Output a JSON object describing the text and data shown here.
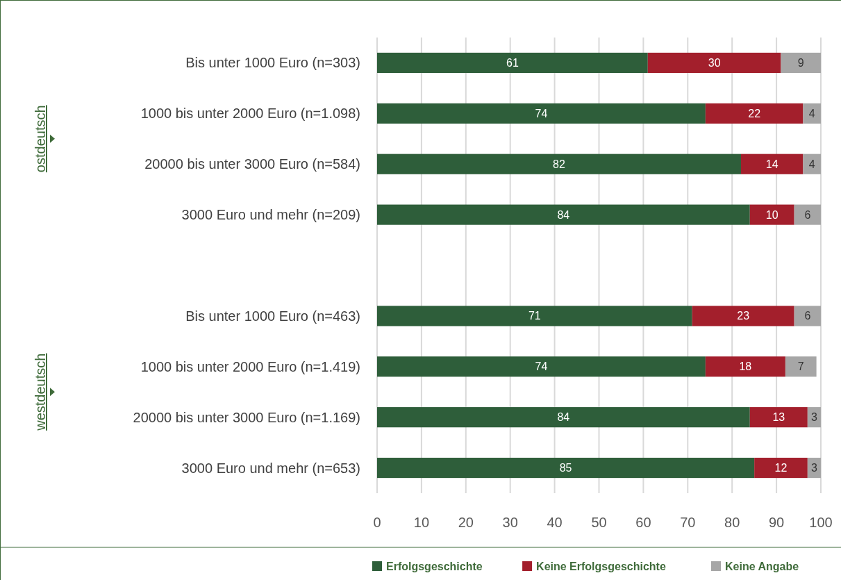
{
  "chart_data": {
    "type": "bar",
    "orientation": "horizontal",
    "stacked": true,
    "categories": [
      "Bis unter 1000 Euro (n=303)",
      "1000 bis unter 2000 Euro (n=1.098)",
      "20000 bis unter 3000 Euro (n=584)",
      "3000 Euro und mehr (n=209)",
      null,
      "Bis unter 1000 Euro (n=463)",
      "1000 bis unter 2000 Euro (n=1.419)",
      "20000 bis unter 3000 Euro (n=1.169)",
      "3000 Euro und mehr (n=653)"
    ],
    "series": [
      {
        "name": "Erfolgsgeschichte",
        "color": "#2e5e3a",
        "values": [
          61,
          74,
          82,
          84,
          null,
          71,
          74,
          84,
          85
        ]
      },
      {
        "name": "Keine Erfolgsgeschichte",
        "color": "#a31f2c",
        "values": [
          30,
          22,
          14,
          10,
          null,
          23,
          18,
          13,
          12
        ]
      },
      {
        "name": "Keine Angabe",
        "color": "#a6a6a6",
        "values": [
          9,
          4,
          4,
          6,
          null,
          6,
          7,
          3,
          3
        ]
      }
    ],
    "xlim": [
      0,
      100
    ],
    "xticks": [
      0,
      10,
      20,
      30,
      40,
      50,
      60,
      70,
      80,
      90,
      100
    ],
    "grid": "x",
    "data_labels": true,
    "legend": "bottom",
    "annotations": [
      "ostdeutsch",
      "westdeutsch"
    ]
  }
}
